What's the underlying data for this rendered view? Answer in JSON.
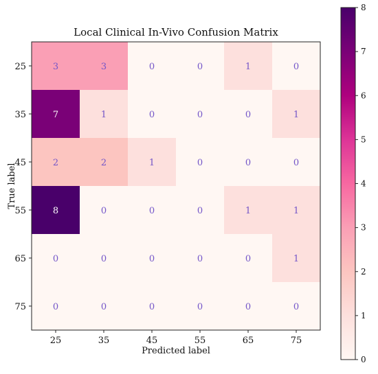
{
  "chart_data": {
    "type": "heatmap",
    "title": "Local Clinical In-Vivo Confusion Matrix",
    "xlabel": "Predicted label",
    "ylabel": "True label",
    "x_categories": [
      "25",
      "35",
      "45",
      "55",
      "65",
      "75"
    ],
    "y_categories": [
      "25",
      "35",
      "45",
      "55",
      "65",
      "75"
    ],
    "values": [
      [
        3,
        3,
        0,
        0,
        1,
        0
      ],
      [
        7,
        1,
        0,
        0,
        0,
        1
      ],
      [
        2,
        2,
        1,
        0,
        0,
        0
      ],
      [
        8,
        0,
        0,
        0,
        1,
        1
      ],
      [
        0,
        0,
        0,
        0,
        0,
        1
      ],
      [
        0,
        0,
        0,
        0,
        0,
        0
      ]
    ],
    "colorbar": {
      "min": 0,
      "max": 8,
      "ticks": [
        "0",
        "1",
        "2",
        "3",
        "4",
        "5",
        "6",
        "7",
        "8"
      ]
    },
    "colormap": "RdPu",
    "annotation_color_low": "#7355c8",
    "annotation_color_high": "#ffffff",
    "legend": "none"
  }
}
